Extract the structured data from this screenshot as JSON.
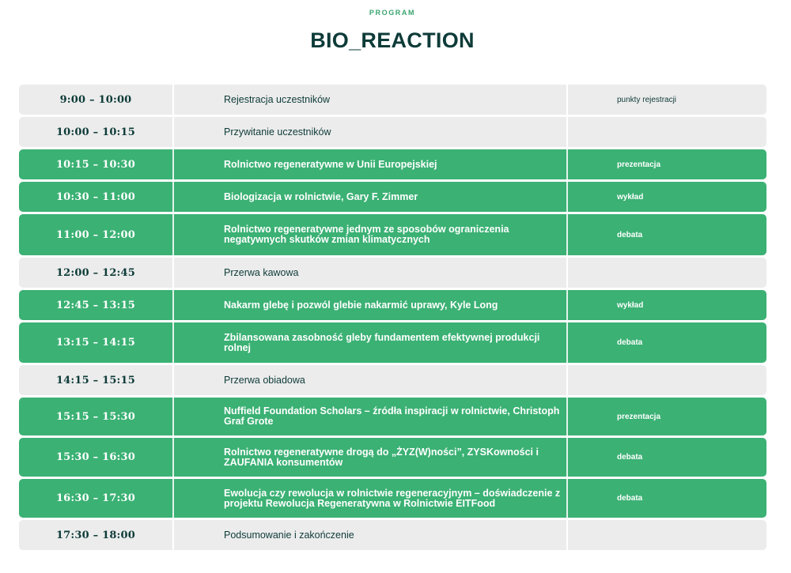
{
  "header": {
    "eyebrow": "PROGRAM",
    "title": "BIO_REACTION"
  },
  "schedule": [
    {
      "time": "9:00 – 10:00",
      "title": "Rejestracja uczestników",
      "type": "punkty rejestracji",
      "highlight": false
    },
    {
      "time": "10:00 – 10:15",
      "title": "Przywitanie uczestników",
      "type": "",
      "highlight": false
    },
    {
      "time": "10:15 – 10:30",
      "title": "Rolnictwo regeneratywne w Unii Europejskiej",
      "type": "prezentacja",
      "highlight": true
    },
    {
      "time": "10:30 – 11:00",
      "title": "Biologizacja w rolnictwie, Gary F. Zimmer",
      "type": "wykład",
      "highlight": true
    },
    {
      "time": "11:00 – 12:00",
      "title": "Rolnictwo regeneratywne jednym ze sposobów ograniczenia negatywnych skutków zmian klimatycznych",
      "type": "debata",
      "highlight": true
    },
    {
      "time": "12:00 – 12:45",
      "title": "Przerwa kawowa",
      "type": "",
      "highlight": false
    },
    {
      "time": "12:45 – 13:15",
      "title": "Nakarm glebę i pozwól glebie nakarmić uprawy, Kyle Long",
      "type": "wykład",
      "highlight": true
    },
    {
      "time": "13:15 – 14:15",
      "title": "Zbilansowana zasobność gleby fundamentem efektywnej produkcji rolnej",
      "type": "debata",
      "highlight": true
    },
    {
      "time": "14:15 – 15:15",
      "title": "Przerwa obiadowa",
      "type": "",
      "highlight": false
    },
    {
      "time": "15:15 – 15:30",
      "title": "Nuffield Foundation Scholars – źródła inspiracji w rolnictwie, Christoph Graf Grote",
      "type": "prezentacja",
      "highlight": true
    },
    {
      "time": "15:30 – 16:30",
      "title": "Rolnictwo regeneratywne drogą do „ŻYZ(W)ności”, ZYSKowności i ZAUFANIA konsumentów",
      "type": "debata",
      "highlight": true
    },
    {
      "time": "16:30 – 17:30",
      "title": "Ewolucja czy rewolucja w rolnictwie regeneracyjnym – doświadczenie z projektu Rewolucja Regeneratywna w Rolnictwie EITFood",
      "type": "debata",
      "highlight": true
    },
    {
      "time": "17:30 – 18:00",
      "title": "Podsumowanie i zakończenie",
      "type": "",
      "highlight": false
    }
  ],
  "colors": {
    "accent_green": "#3bb174",
    "row_gray": "#ececec",
    "text_dark": "#0d3b38"
  }
}
